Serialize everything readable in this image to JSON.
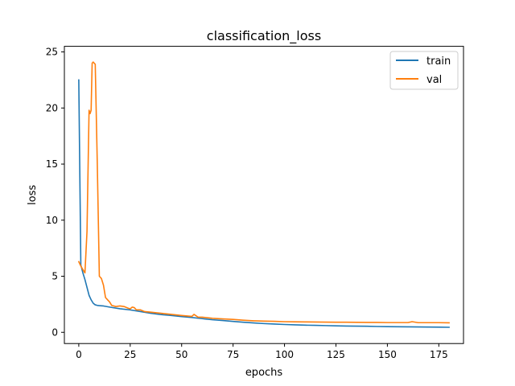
{
  "chart_data": {
    "type": "line",
    "title": "classification_loss",
    "xlabel": "epochs",
    "ylabel": "loss",
    "xlim": [
      -7,
      187
    ],
    "ylim": [
      -1,
      25.5
    ],
    "xticks": [
      0,
      25,
      50,
      75,
      100,
      125,
      150,
      175
    ],
    "yticks": [
      0,
      5,
      10,
      15,
      20,
      25
    ],
    "grid": false,
    "legend_position": "top-right",
    "series": [
      {
        "name": "train",
        "color": "#1f77b4",
        "x": [
          0,
          1,
          2,
          3,
          4,
          5,
          6,
          7,
          8,
          9,
          10,
          12,
          15,
          20,
          25,
          30,
          35,
          40,
          45,
          50,
          55,
          60,
          65,
          70,
          75,
          80,
          85,
          90,
          95,
          100,
          105,
          110,
          115,
          120,
          125,
          130,
          135,
          140,
          145,
          150,
          155,
          160,
          165,
          170,
          175,
          180
        ],
        "y": [
          22.5,
          6.0,
          5.3,
          4.7,
          4.0,
          3.3,
          2.9,
          2.6,
          2.45,
          2.4,
          2.38,
          2.35,
          2.25,
          2.1,
          2.0,
          1.85,
          1.7,
          1.58,
          1.5,
          1.4,
          1.32,
          1.22,
          1.12,
          1.05,
          0.97,
          0.9,
          0.84,
          0.78,
          0.74,
          0.7,
          0.67,
          0.64,
          0.62,
          0.6,
          0.58,
          0.56,
          0.55,
          0.54,
          0.52,
          0.51,
          0.5,
          0.49,
          0.48,
          0.47,
          0.46,
          0.45
        ]
      },
      {
        "name": "val",
        "color": "#ff7f0e",
        "x": [
          0,
          1,
          2,
          3,
          4,
          5,
          5.5,
          6,
          6.5,
          7,
          8,
          9,
          10,
          11,
          12,
          13,
          14,
          15,
          16,
          18,
          20,
          22,
          24,
          25,
          26,
          27,
          28,
          30,
          32,
          35,
          40,
          45,
          50,
          55,
          56,
          58,
          60,
          65,
          70,
          75,
          80,
          85,
          90,
          95,
          100,
          105,
          110,
          115,
          120,
          125,
          130,
          135,
          140,
          145,
          150,
          155,
          160,
          162,
          165,
          170,
          175,
          180
        ],
        "y": [
          6.3,
          5.9,
          5.6,
          5.3,
          9.0,
          19.8,
          19.5,
          19.8,
          24.0,
          24.1,
          23.9,
          15.0,
          5.0,
          4.8,
          4.2,
          3.1,
          2.9,
          2.7,
          2.4,
          2.3,
          2.35,
          2.3,
          2.15,
          2.1,
          2.25,
          2.2,
          2.0,
          2.0,
          1.85,
          1.8,
          1.7,
          1.6,
          1.5,
          1.42,
          1.6,
          1.35,
          1.35,
          1.25,
          1.2,
          1.15,
          1.08,
          1.03,
          1.0,
          0.98,
          0.95,
          0.94,
          0.93,
          0.92,
          0.91,
          0.9,
          0.9,
          0.89,
          0.88,
          0.88,
          0.87,
          0.87,
          0.87,
          0.95,
          0.86,
          0.86,
          0.86,
          0.85
        ]
      }
    ]
  }
}
